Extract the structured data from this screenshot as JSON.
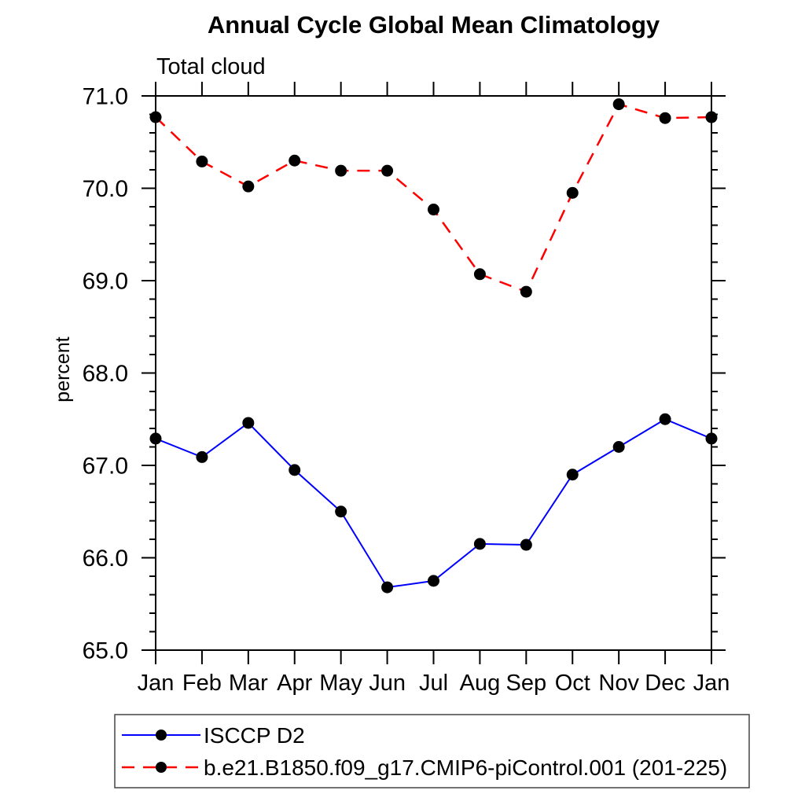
{
  "page": {
    "background_color": "#ffffff"
  },
  "chart_data": {
    "type": "line",
    "title": "Annual Cycle Global Mean Climatology",
    "subtitle": "Total cloud",
    "xlabel": "",
    "ylabel": "percent",
    "categories": [
      "Jan",
      "Feb",
      "Mar",
      "Apr",
      "May",
      "Jun",
      "Jul",
      "Aug",
      "Sep",
      "Oct",
      "Nov",
      "Dec",
      "Jan"
    ],
    "ylim": [
      65.0,
      71.0
    ],
    "ytick_major_interval": 1.0,
    "ytick_minor_interval": 0.2,
    "ytick_labels": [
      "65.0",
      "66.0",
      "67.0",
      "68.0",
      "69.0",
      "70.0",
      "71.0"
    ],
    "grid": false,
    "axis_color": "#000000",
    "legend_position": "bottom-left-box",
    "series": [
      {
        "name": "ISCCP D2",
        "color": "#0000ff",
        "line_style": "solid",
        "line_width": 2,
        "marker": "filled-circle",
        "marker_color": "#000000",
        "values": [
          67.29,
          67.09,
          67.46,
          66.95,
          66.5,
          65.68,
          65.75,
          66.15,
          66.14,
          66.9,
          67.2,
          67.5,
          67.29
        ]
      },
      {
        "name": "b.e21.B1850.f09_g17.CMIP6-piControl.001 (201-225)",
        "color": "#ff0000",
        "line_style": "dashed",
        "line_width": 2.5,
        "marker": "filled-circle",
        "marker_color": "#000000",
        "values": [
          70.77,
          70.29,
          70.02,
          70.3,
          70.19,
          70.19,
          69.77,
          69.07,
          68.88,
          69.95,
          70.91,
          70.76,
          70.77
        ]
      }
    ]
  }
}
